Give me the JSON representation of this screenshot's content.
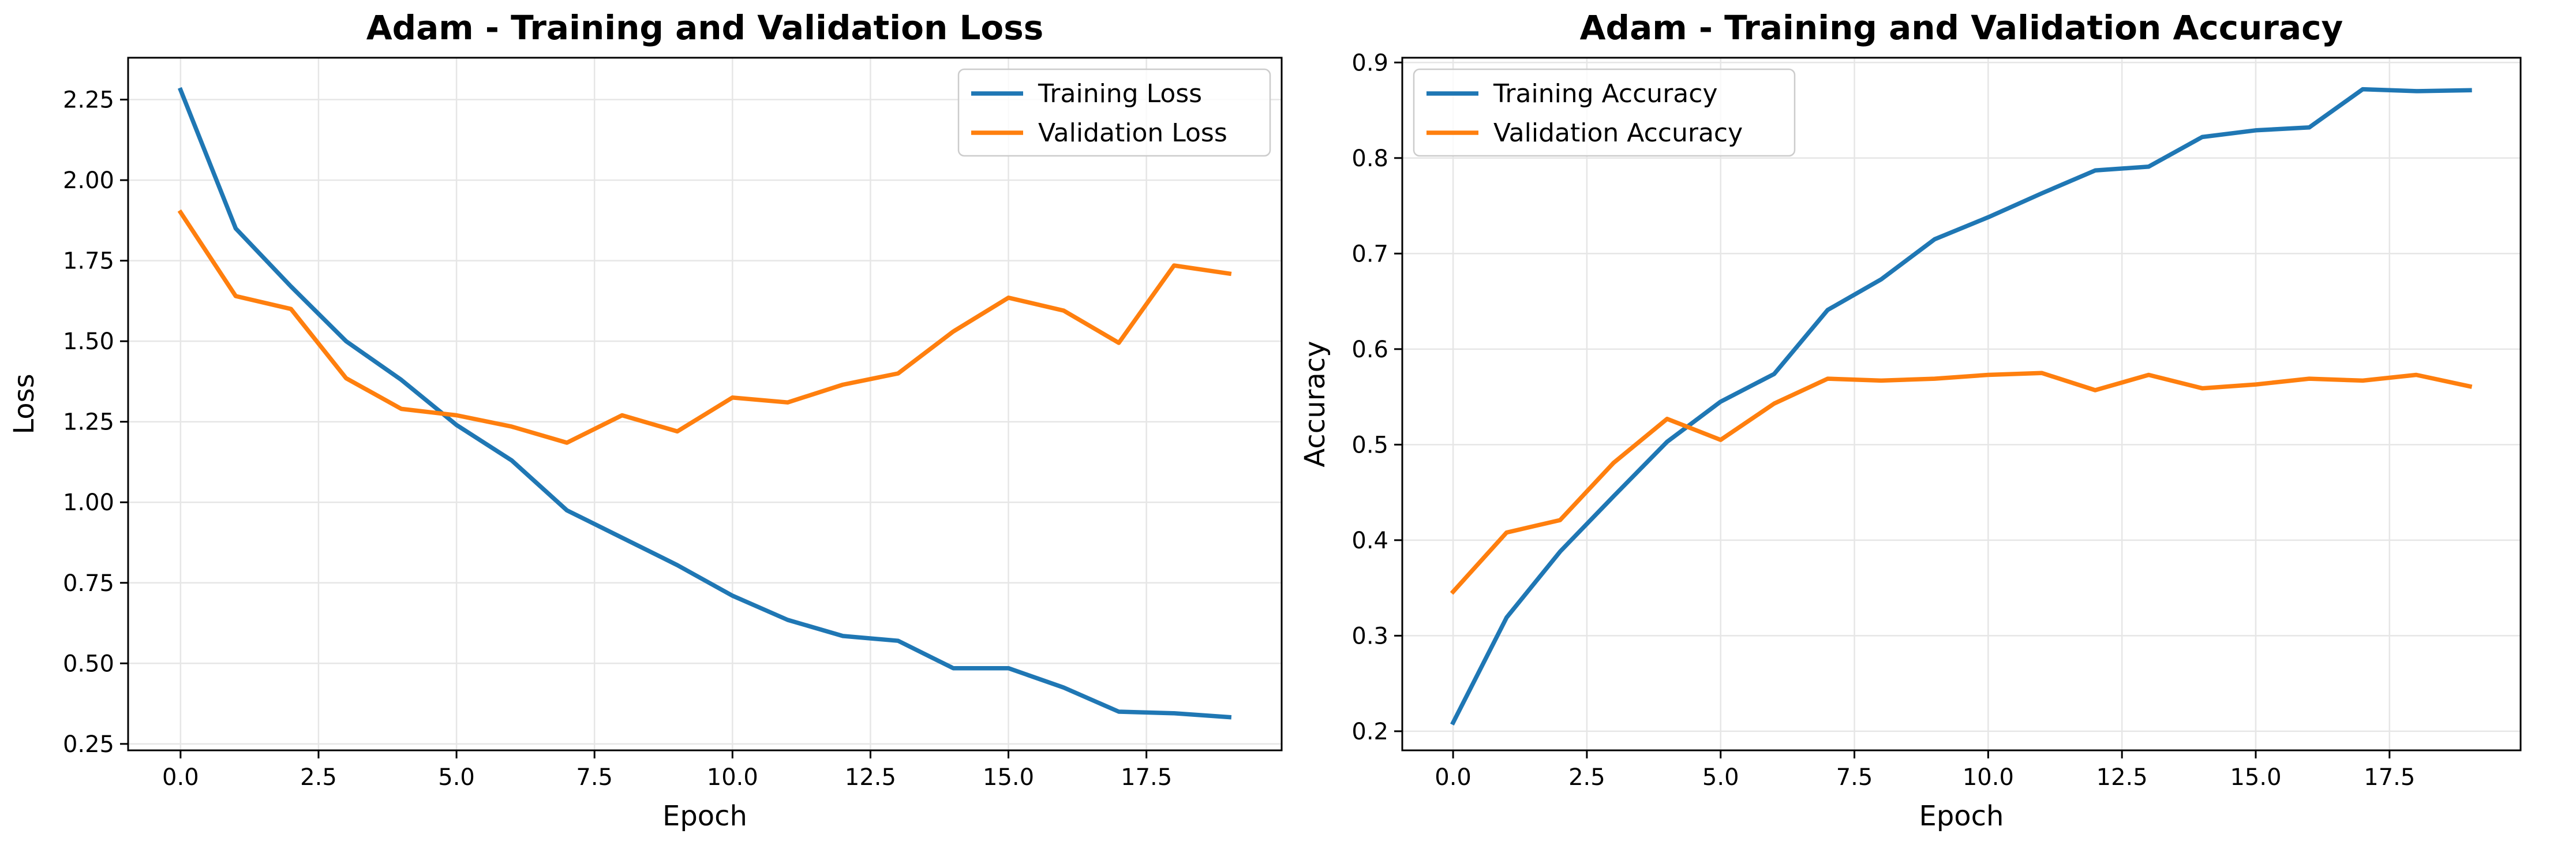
{
  "chart_data": [
    {
      "type": "line",
      "title": "Adam - Training and Validation Loss",
      "xlabel": "Epoch",
      "ylabel": "Loss",
      "xlim": [
        -0.95,
        19.95
      ],
      "ylim": [
        0.23,
        2.38
      ],
      "xticks": [
        0.0,
        2.5,
        5.0,
        7.5,
        10.0,
        12.5,
        15.0,
        17.5
      ],
      "xtick_labels": [
        "0.0",
        "2.5",
        "5.0",
        "7.5",
        "10.0",
        "12.5",
        "15.0",
        "17.5"
      ],
      "yticks": [
        0.25,
        0.5,
        0.75,
        1.0,
        1.25,
        1.5,
        1.75,
        2.0,
        2.25
      ],
      "ytick_labels": [
        "0.25",
        "0.50",
        "0.75",
        "1.00",
        "1.25",
        "1.50",
        "1.75",
        "2.00",
        "2.25"
      ],
      "grid": true,
      "legend_position": "top-right",
      "x": [
        0,
        1,
        2,
        3,
        4,
        5,
        6,
        7,
        8,
        9,
        10,
        11,
        12,
        13,
        14,
        15,
        16,
        17,
        18,
        19
      ],
      "series": [
        {
          "name": "Training Loss",
          "color": "#1f77b4",
          "values": [
            2.28,
            1.85,
            1.67,
            1.5,
            1.38,
            1.24,
            1.13,
            0.975,
            0.89,
            0.805,
            0.71,
            0.635,
            0.585,
            0.57,
            0.485,
            0.485,
            0.425,
            0.35,
            0.345,
            0.333
          ]
        },
        {
          "name": "Validation Loss",
          "color": "#ff7f0e",
          "values": [
            1.9,
            1.64,
            1.6,
            1.385,
            1.29,
            1.27,
            1.235,
            1.185,
            1.27,
            1.22,
            1.325,
            1.31,
            1.365,
            1.4,
            1.53,
            1.635,
            1.595,
            1.495,
            1.735,
            1.71
          ]
        }
      ]
    },
    {
      "type": "line",
      "title": "Adam - Training and Validation Accuracy",
      "xlabel": "Epoch",
      "ylabel": "Accuracy",
      "xlim": [
        -0.95,
        19.95
      ],
      "ylim": [
        0.18,
        0.905
      ],
      "xticks": [
        0.0,
        2.5,
        5.0,
        7.5,
        10.0,
        12.5,
        15.0,
        17.5
      ],
      "xtick_labels": [
        "0.0",
        "2.5",
        "5.0",
        "7.5",
        "10.0",
        "12.5",
        "15.0",
        "17.5"
      ],
      "yticks": [
        0.2,
        0.3,
        0.4,
        0.5,
        0.6,
        0.7,
        0.8,
        0.9
      ],
      "ytick_labels": [
        "0.2",
        "0.3",
        "0.4",
        "0.5",
        "0.6",
        "0.7",
        "0.8",
        "0.9"
      ],
      "grid": true,
      "legend_position": "top-left",
      "x": [
        0,
        1,
        2,
        3,
        4,
        5,
        6,
        7,
        8,
        9,
        10,
        11,
        12,
        13,
        14,
        15,
        16,
        17,
        18,
        19
      ],
      "series": [
        {
          "name": "Training Accuracy",
          "color": "#1f77b4",
          "values": [
            0.209,
            0.319,
            0.388,
            0.446,
            0.503,
            0.545,
            0.574,
            0.641,
            0.673,
            0.715,
            0.738,
            0.763,
            0.787,
            0.791,
            0.822,
            0.829,
            0.832,
            0.872,
            0.87,
            0.871
          ]
        },
        {
          "name": "Validation Accuracy",
          "color": "#ff7f0e",
          "values": [
            0.346,
            0.408,
            0.421,
            0.481,
            0.527,
            0.505,
            0.543,
            0.569,
            0.567,
            0.569,
            0.573,
            0.575,
            0.557,
            0.573,
            0.559,
            0.563,
            0.569,
            0.567,
            0.573,
            0.561
          ]
        }
      ]
    }
  ]
}
